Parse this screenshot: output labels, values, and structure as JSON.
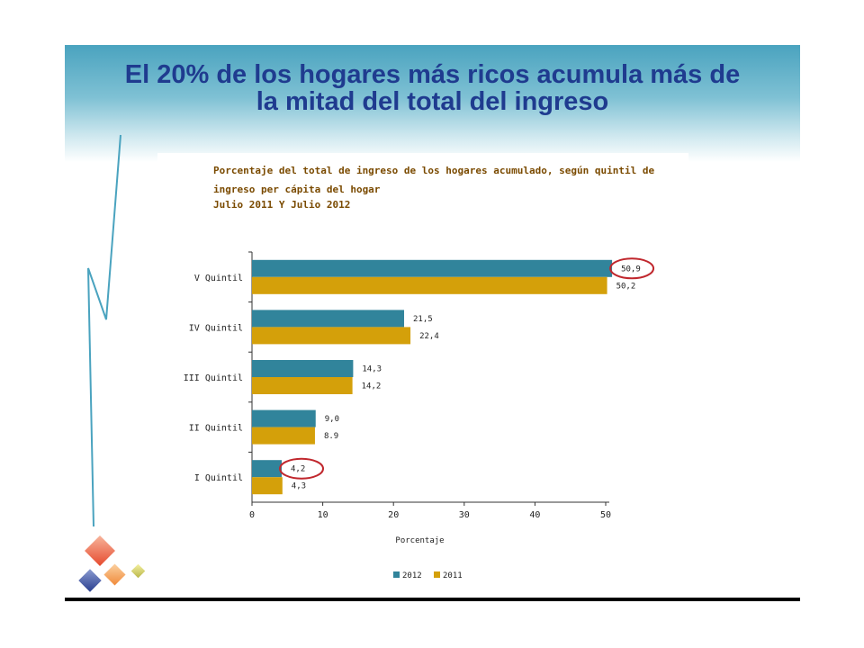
{
  "slide": {
    "title_line1": "El 20% de los hogares más ricos acumula más de",
    "title_line2": "la mitad del total del ingreso"
  },
  "chart_data": {
    "type": "bar",
    "orientation": "horizontal",
    "title_lines": [
      "Porcentaje del total de ingreso de los hogares acumulado, según quintil de",
      "ingreso per cápita del hogar",
      "Julio 2011 Y Julio 2012"
    ],
    "categories": [
      "V Quintil",
      "IV Quintil",
      "III Quintil",
      "II Quintil",
      "I Quintil"
    ],
    "series": [
      {
        "name": "2012",
        "color": "#31849b",
        "values": [
          50.9,
          21.5,
          14.3,
          9.0,
          4.2
        ],
        "labels": [
          "50,9",
          "21,5",
          "14,3",
          "9,0",
          "4,2"
        ]
      },
      {
        "name": "2011",
        "color": "#d4a00a",
        "values": [
          50.2,
          22.4,
          14.2,
          8.9,
          4.3
        ],
        "labels": [
          "50,2",
          "22,4",
          "14,2",
          "8.9",
          "4,3"
        ]
      }
    ],
    "xlabel": "Porcentaje",
    "xlim": [
      0,
      50
    ],
    "xticks": [
      "0",
      "10",
      "20",
      "30",
      "40",
      "50"
    ],
    "grid": false,
    "legend_position": "bottom",
    "highlighted": [
      "50,9",
      "4,2"
    ],
    "highlight_color": "#c0272d"
  }
}
